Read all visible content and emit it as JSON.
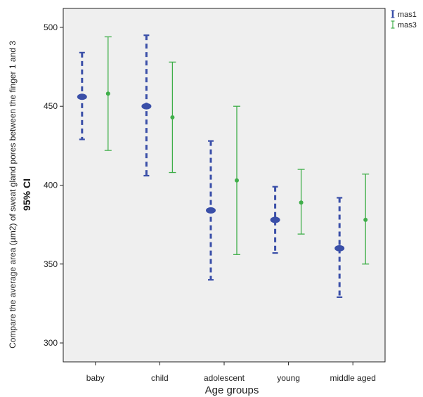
{
  "chart_data": {
    "type": "errorbar",
    "categories": [
      "baby",
      "child",
      "adolescent",
      "young",
      "middle aged"
    ],
    "series": [
      {
        "name": "mas1",
        "color": "#3a4fa8",
        "mean": [
          456,
          450,
          384,
          378,
          360
        ],
        "lower": [
          429,
          406,
          340,
          357,
          329
        ],
        "upper": [
          484,
          495,
          428,
          399,
          392
        ]
      },
      {
        "name": "mas3",
        "color": "#3fae49",
        "mean": [
          458,
          443,
          403,
          389,
          378
        ],
        "lower": [
          422,
          408,
          356,
          369,
          350
        ],
        "upper": [
          494,
          478,
          450,
          410,
          407
        ]
      }
    ],
    "xlabel": "Age groups",
    "ylabel": "Compare the average area (µm2) of sweat gland pores between the finger 1 and 3",
    "ylabel_sub": "95% CI",
    "ylim": [
      288,
      512
    ],
    "yticks": [
      300,
      350,
      400,
      450,
      500
    ],
    "legend_position": "top-right",
    "plot_background": "#efefef"
  }
}
